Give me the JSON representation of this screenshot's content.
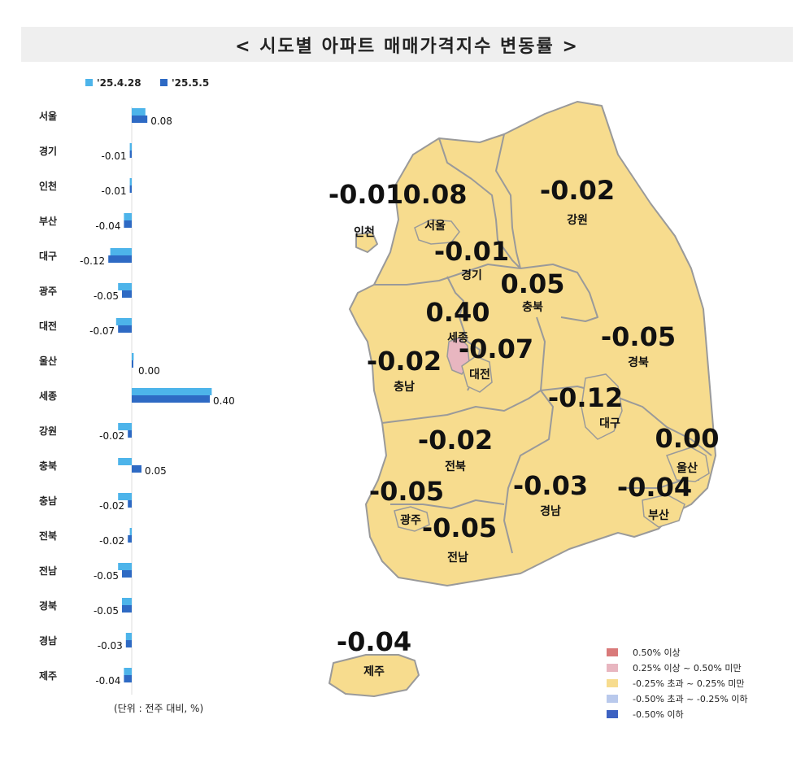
{
  "title": "< 시도별 아파트 매매가격지수 변동률 >",
  "unit_note": "(단위 : 전주 대비, %)",
  "colors": {
    "series_prev": "#4db4ea",
    "series_curr": "#2e6ac4",
    "map_fill": "#f7dc8e",
    "map_highlight": "#e8b6c0",
    "map_border": "#9a9a9a"
  },
  "chart_data": {
    "type": "bar",
    "orientation": "horizontal",
    "legend": "top-left",
    "categories": [
      "서울",
      "경기",
      "인천",
      "부산",
      "대구",
      "광주",
      "대전",
      "울산",
      "세종",
      "강원",
      "충북",
      "충남",
      "전북",
      "전남",
      "경북",
      "경남",
      "제주"
    ],
    "series": [
      {
        "name": "'25.4.28",
        "values": [
          0.07,
          -0.01,
          -0.01,
          -0.04,
          -0.11,
          -0.07,
          -0.08,
          0.01,
          0.41,
          -0.07,
          -0.07,
          -0.07,
          -0.01,
          -0.07,
          -0.05,
          -0.03,
          -0.04
        ]
      },
      {
        "name": "'25.5.5",
        "values": [
          0.08,
          -0.01,
          -0.01,
          -0.04,
          -0.12,
          -0.05,
          -0.07,
          0.0,
          0.4,
          -0.02,
          0.05,
          -0.02,
          -0.02,
          -0.05,
          -0.05,
          -0.03,
          -0.04
        ]
      }
    ],
    "data_labels": [
      "0.08",
      "-0.01",
      "-0.01",
      "-0.04",
      "-0.12",
      "-0.05",
      "-0.07",
      "0.00",
      "0.40",
      "-0.02",
      "0.05",
      "-0.02",
      "-0.02",
      "-0.05",
      "-0.05",
      "-0.03",
      "-0.04"
    ]
  },
  "map_labels": [
    {
      "region": "인천",
      "value": "-0.01"
    },
    {
      "region": "서울",
      "value": "0.08"
    },
    {
      "region": "강원",
      "value": "-0.02"
    },
    {
      "region": "경기",
      "value": "-0.01"
    },
    {
      "region": "충북",
      "value": "0.05"
    },
    {
      "region": "세종",
      "value": "0.40"
    },
    {
      "region": "대전",
      "value": "-0.07"
    },
    {
      "region": "충남",
      "value": "-0.02"
    },
    {
      "region": "경북",
      "value": "-0.05"
    },
    {
      "region": "대구",
      "value": "-0.12"
    },
    {
      "region": "울산",
      "value": "0.00"
    },
    {
      "region": "전북",
      "value": "-0.02"
    },
    {
      "region": "광주",
      "value": "-0.05"
    },
    {
      "region": "경남",
      "value": "-0.03"
    },
    {
      "region": "부산",
      "value": "-0.04"
    },
    {
      "region": "전남",
      "value": "-0.05"
    },
    {
      "region": "제주",
      "value": "-0.04"
    }
  ],
  "map_legend": [
    {
      "label": "0.50% 이상",
      "color": "#d97a7a"
    },
    {
      "label": "0.25% 이상 ~ 0.50% 미만",
      "color": "#e8b6c0"
    },
    {
      "label": "-0.25% 초과 ~ 0.25% 미만",
      "color": "#f7dc8e"
    },
    {
      "label": "-0.50% 초과 ~ -0.25% 이하",
      "color": "#b9c9ec"
    },
    {
      "label": "-0.50% 이하",
      "color": "#3d62c2"
    }
  ]
}
